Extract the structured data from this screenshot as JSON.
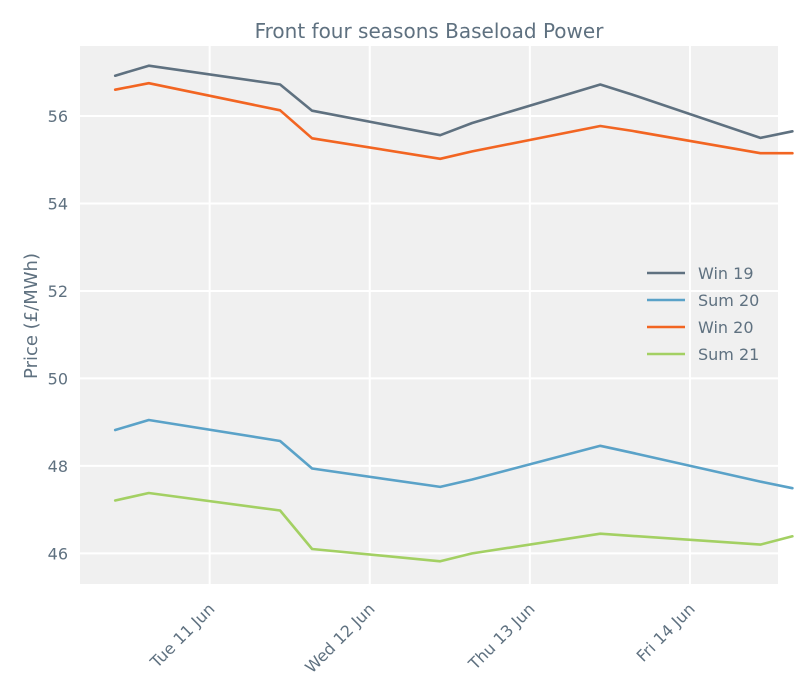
{
  "chart_data": {
    "type": "line",
    "title": "Front four seasons Baseload Power",
    "xlabel": "",
    "ylabel": "Price (£/MWh)",
    "ylim": [
      45.3,
      57.6
    ],
    "yticks": [
      46,
      48,
      50,
      52,
      54,
      56
    ],
    "xlim": [
      0.19,
      4.55
    ],
    "xticks": [
      {
        "label": "Tue 11 Jun",
        "x": 1
      },
      {
        "label": "Wed 12 Jun",
        "x": 2
      },
      {
        "label": "Thu 13 Jun",
        "x": 3
      },
      {
        "label": "Fri 14 Jun",
        "x": 4
      }
    ],
    "x": [
      0.41,
      0.62,
      1.44,
      1.64,
      2.44,
      2.64,
      3.44,
      3.64,
      4.44,
      4.64
    ],
    "series": [
      {
        "name": "Win 19",
        "color": "#5f7180",
        "values": [
          56.92,
          57.15,
          56.72,
          56.12,
          55.56,
          55.84,
          56.72,
          56.49,
          55.5,
          55.65
        ]
      },
      {
        "name": "Sum 20",
        "color": "#5aa2c8",
        "values": [
          48.82,
          49.05,
          48.57,
          47.94,
          47.52,
          47.69,
          48.46,
          48.3,
          47.64,
          47.49
        ]
      },
      {
        "name": "Win 20",
        "color": "#f26522",
        "values": [
          56.6,
          56.75,
          56.13,
          55.49,
          55.02,
          55.19,
          55.77,
          55.66,
          55.15,
          55.15
        ]
      },
      {
        "name": "Sum 21",
        "color": "#a3d063",
        "values": [
          47.21,
          47.38,
          46.98,
          46.1,
          45.82,
          46.0,
          46.45,
          46.4,
          46.2,
          46.39
        ]
      }
    ],
    "legend": "center-right",
    "grid": true
  }
}
